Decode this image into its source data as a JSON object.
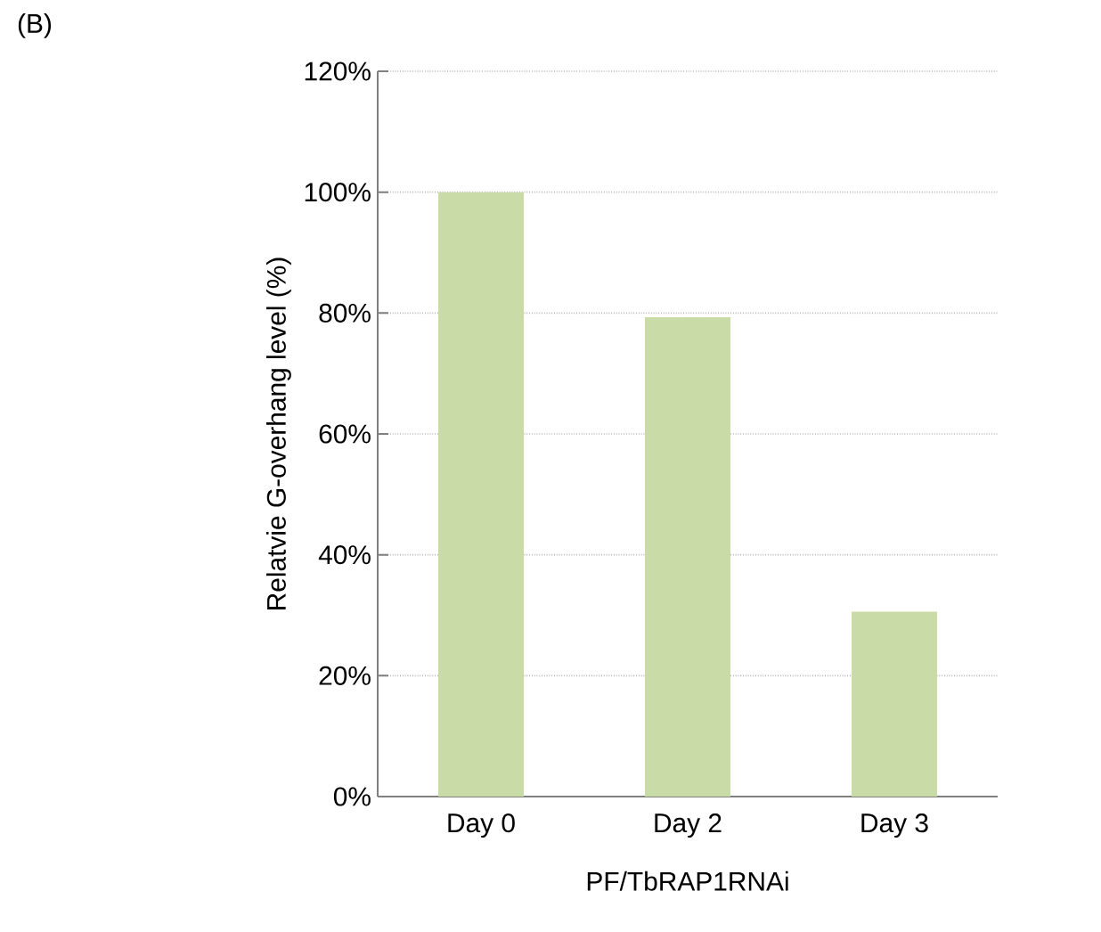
{
  "chart_data": {
    "type": "bar",
    "categories": [
      "Day 0",
      "Day 2",
      "Day 3"
    ],
    "values": [
      100,
      79.3,
      30.6
    ],
    "color": "#c9dba6",
    "xlabel": "PF/TbRAP1RNAi",
    "ylabel": "Relatvie G-overhang level (%)",
    "ylim": [
      0,
      120
    ],
    "yticks": [
      {
        "value": 0,
        "label": "0%"
      },
      {
        "value": 20,
        "label": "20%"
      },
      {
        "value": 40,
        "label": "40%"
      },
      {
        "value": 60,
        "label": "60%"
      },
      {
        "value": 80,
        "label": "80%"
      },
      {
        "value": 100,
        "label": "100%"
      },
      {
        "value": 120,
        "label": "120%"
      }
    ],
    "grid": "y",
    "annotations": [
      "(B)"
    ]
  }
}
